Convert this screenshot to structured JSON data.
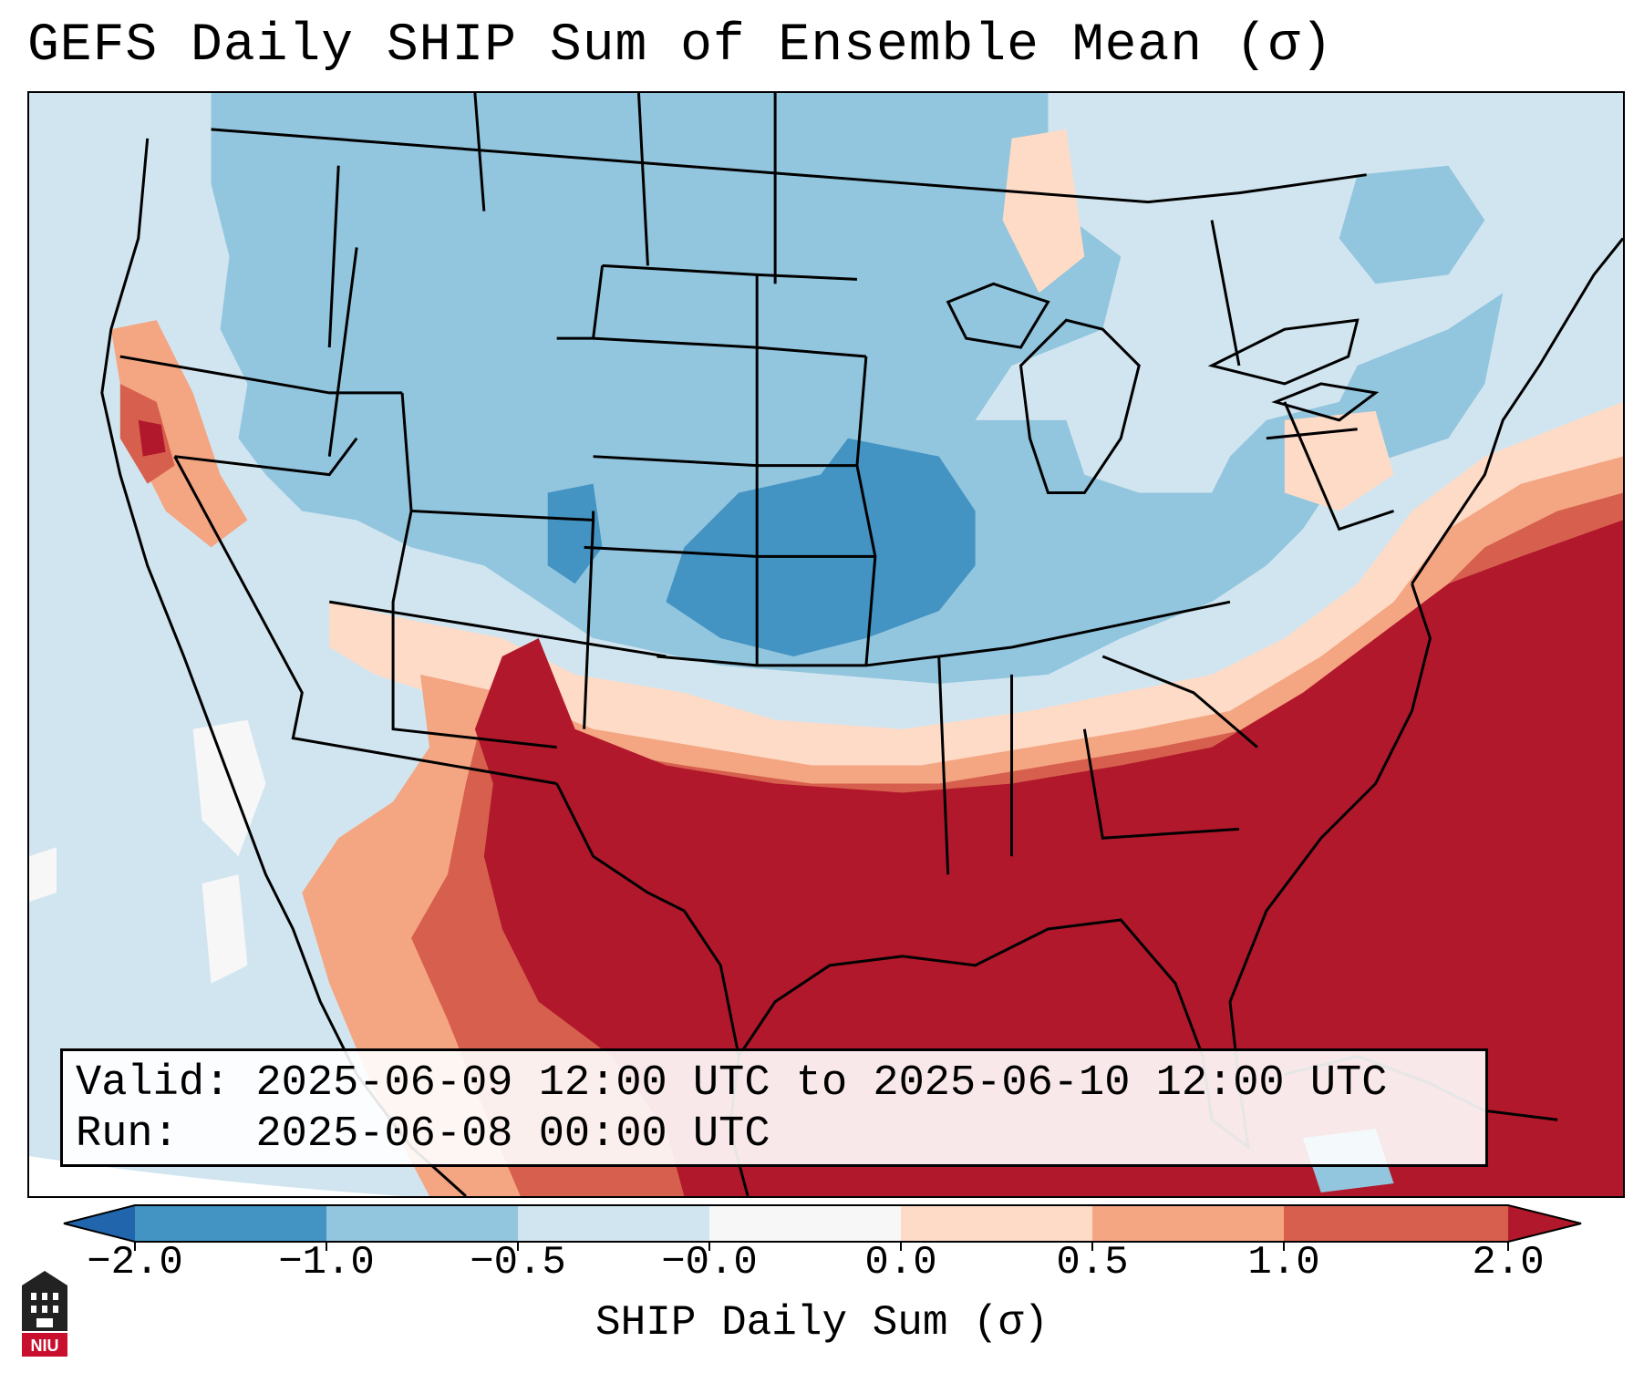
{
  "title": "GEFS Daily SHIP Sum of Ensemble Mean (σ)",
  "info": {
    "valid_label": "Valid:",
    "valid_value": "2025-06-09 12:00 UTC to 2025-06-10 12:00 UTC",
    "run_label": "Run:",
    "run_value": "2025-06-08 00:00 UTC"
  },
  "colorbar": {
    "label": "SHIP Daily Sum (σ)",
    "ticks": [
      "−2.0",
      "−1.0",
      "−0.5",
      "−0.0",
      "0.0",
      "0.5",
      "1.0",
      "2.0"
    ],
    "bins": [
      {
        "range": "< -2.0",
        "color": "#2166ac"
      },
      {
        "range": "-2.0 to -1.0",
        "color": "#4393c3"
      },
      {
        "range": "-1.0 to -0.5",
        "color": "#92c5de"
      },
      {
        "range": "-0.5 to -0.0",
        "color": "#d1e5f0"
      },
      {
        "range": "-0.0 to 0.0",
        "color": "#f7f7f7"
      },
      {
        "range": "0.0 to 0.5",
        "color": "#fddbc7"
      },
      {
        "range": "0.5 to 1.0",
        "color": "#f4a582"
      },
      {
        "range": "1.0 to 2.0",
        "color": "#d6604d"
      },
      {
        "range": "> 2.0",
        "color": "#b2182b"
      }
    ]
  },
  "colors": {
    "strong_negative": "#4393c3",
    "moderate_negative": "#92c5de",
    "weak_negative": "#d1e5f0",
    "neutral": "#f7f7f7",
    "weak_positive": "#fddbc7",
    "moderate_positive": "#f4a582",
    "strong_positive": "#d6604d",
    "extreme_positive": "#b2182b"
  },
  "logo_text": "NIU"
}
